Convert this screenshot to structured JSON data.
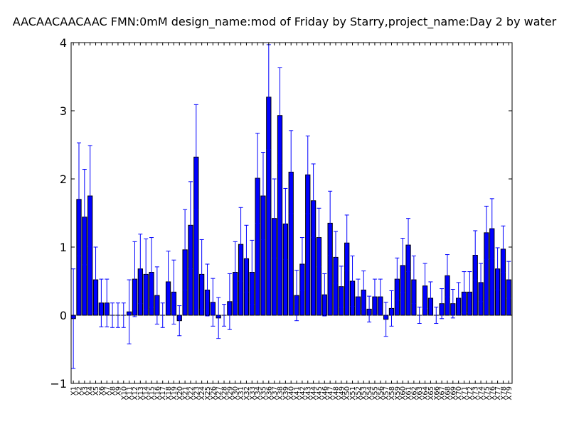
{
  "chart_data": {
    "type": "bar",
    "title": "AACAACAACAAC  FMN:0mM  design_name:mod of Friday by Starry,project_name:Day 2 by water",
    "xlabel": "",
    "ylabel": "",
    "ylim": [
      -1,
      4
    ],
    "yticks": [
      -1,
      0,
      1,
      2,
      3,
      4
    ],
    "ytick_labels": [
      "−1",
      "0",
      "1",
      "2",
      "3",
      "4"
    ],
    "grid": false,
    "bar_color": "#0000ff",
    "error_color": "#0000ff",
    "categories": [
      "X1",
      "X2",
      "X3",
      "X4",
      "X5",
      "X6",
      "X7",
      "X8",
      "X9",
      "X10",
      "X11",
      "X12",
      "X13",
      "X14",
      "X15",
      "X16",
      "X17",
      "X18",
      "X19",
      "X20",
      "X21",
      "X22",
      "X23",
      "X24",
      "X25",
      "X26",
      "X27",
      "X28",
      "X29",
      "X30",
      "X31",
      "X32",
      "X33",
      "X34",
      "X35",
      "X36",
      "X37",
      "X38",
      "X39",
      "X40",
      "X41",
      "X42",
      "X43",
      "X44",
      "X45",
      "X46",
      "X47",
      "X48",
      "X49",
      "X50",
      "X51",
      "X52",
      "X53",
      "X54",
      "X55",
      "X56",
      "X57",
      "X58",
      "X59",
      "X60",
      "X61",
      "X62",
      "X63",
      "X64",
      "X65",
      "X66",
      "X67",
      "X68",
      "X69",
      "X70",
      "X71",
      "X72",
      "X73",
      "X74",
      "X75",
      "X76",
      "X77",
      "X78",
      "X79"
    ],
    "values": [
      -0.05,
      1.7,
      1.44,
      1.75,
      0.52,
      0.18,
      0.18,
      0.0,
      0.0,
      0.0,
      0.05,
      0.53,
      0.68,
      0.6,
      0.63,
      0.29,
      0.0,
      0.49,
      0.34,
      -0.08,
      0.96,
      1.32,
      2.32,
      0.6,
      0.37,
      0.19,
      -0.04,
      0.0,
      0.2,
      0.63,
      1.04,
      0.83,
      0.63,
      2.01,
      1.75,
      3.2,
      1.42,
      2.93,
      1.34,
      2.1,
      0.29,
      0.75,
      2.06,
      1.68,
      1.14,
      0.3,
      1.35,
      0.85,
      0.42,
      1.06,
      0.5,
      0.27,
      0.37,
      0.09,
      0.27,
      0.27,
      -0.06,
      0.1,
      0.53,
      0.73,
      1.03,
      0.52,
      0.0,
      0.43,
      0.25,
      0.0,
      0.17,
      0.58,
      0.17,
      0.25,
      0.34,
      0.34,
      0.88,
      0.48,
      1.21,
      1.27,
      0.68,
      0.97,
      0.52
    ],
    "errors": [
      0.73,
      0.83,
      0.7,
      0.74,
      0.48,
      0.35,
      0.35,
      0.18,
      0.18,
      0.18,
      0.47,
      0.55,
      0.51,
      0.52,
      0.51,
      0.42,
      0.18,
      0.45,
      0.47,
      0.22,
      0.59,
      0.64,
      0.77,
      0.51,
      0.38,
      0.35,
      0.3,
      0.16,
      0.41,
      0.45,
      0.54,
      0.49,
      0.47,
      0.66,
      0.64,
      0.77,
      0.58,
      0.7,
      0.52,
      0.61,
      0.37,
      0.39,
      0.57,
      0.54,
      0.43,
      0.31,
      0.47,
      0.38,
      0.3,
      0.41,
      0.37,
      0.26,
      0.28,
      0.19,
      0.26,
      0.26,
      0.25,
      0.26,
      0.31,
      0.4,
      0.39,
      0.35,
      0.12,
      0.33,
      0.24,
      0.12,
      0.22,
      0.31,
      0.21,
      0.23,
      0.3,
      0.3,
      0.36,
      0.28,
      0.39,
      0.44,
      0.31,
      0.34,
      0.27
    ]
  }
}
